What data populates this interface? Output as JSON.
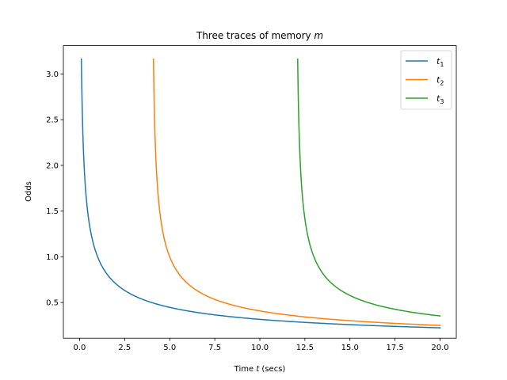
{
  "chart_data": {
    "type": "line",
    "title": "Three traces of memory m",
    "title_parts": {
      "text": "Three traces of memory ",
      "var": "m"
    },
    "xlabel_parts": {
      "pre": "Time ",
      "var": "t",
      "post": " (secs)"
    },
    "ylabel": "Odds",
    "xlim": [
      -0.9,
      20.9
    ],
    "ylim": [
      0.11,
      3.31
    ],
    "xticks": [
      0.0,
      2.5,
      5.0,
      7.5,
      10.0,
      12.5,
      15.0,
      17.5,
      20.0
    ],
    "xtick_labels": [
      "0.0",
      "2.5",
      "5.0",
      "7.5",
      "10.0",
      "12.5",
      "15.0",
      "17.5",
      "20.0"
    ],
    "yticks": [
      0.5,
      1.0,
      1.5,
      2.0,
      2.5,
      3.0
    ],
    "ytick_labels": [
      "0.5",
      "1.0",
      "1.5",
      "2.0",
      "2.5",
      "3.0"
    ],
    "grid": false,
    "legend_position": "top-right",
    "x_end": 20.0,
    "series": [
      {
        "name": "t",
        "subscript": "1",
        "start": 0.1,
        "color": "#1f77b4"
      },
      {
        "name": "t",
        "subscript": "2",
        "start": 4.1,
        "color": "#ff7f0e"
      },
      {
        "name": "t",
        "subscript": "3",
        "start": 12.1,
        "color": "#2ca02c"
      }
    ],
    "curve": {
      "formula": "odds = (t - t_start)^(-0.5)",
      "exponent": -0.5,
      "start_gap": 0.1
    }
  }
}
